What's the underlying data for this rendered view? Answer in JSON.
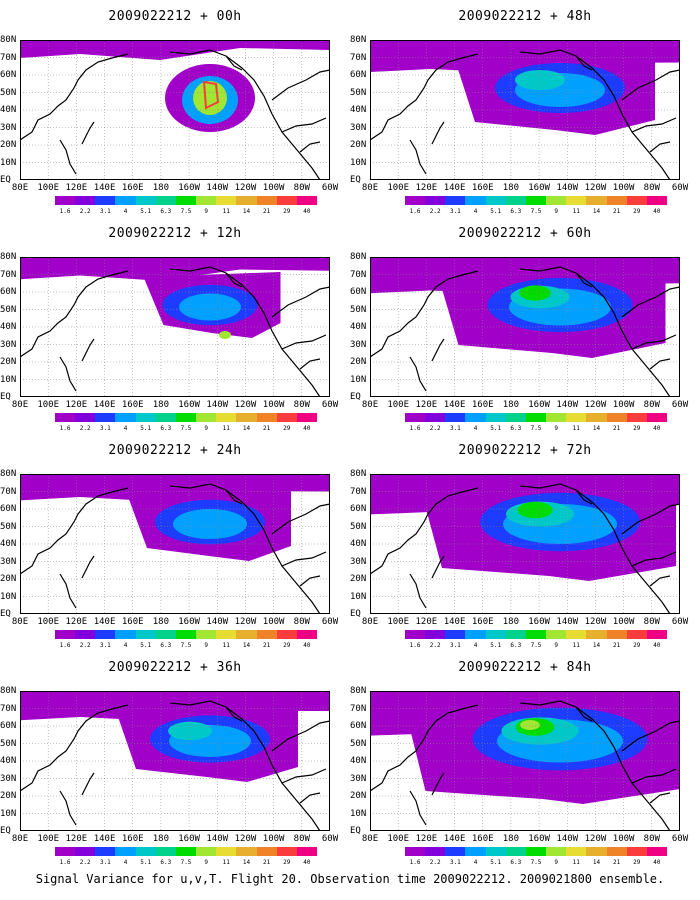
{
  "panels": [
    {
      "title": "2009022212 + 00h",
      "spread": 0.0
    },
    {
      "title": "2009022212 + 48h",
      "spread": 0.5
    },
    {
      "title": "2009022212 + 12h",
      "spread": 0.15
    },
    {
      "title": "2009022212 + 60h",
      "spread": 0.65
    },
    {
      "title": "2009022212 + 24h",
      "spread": 0.3
    },
    {
      "title": "2009022212 + 72h",
      "spread": 0.8
    },
    {
      "title": "2009022212 + 36h",
      "spread": 0.4
    },
    {
      "title": "2009022212 + 84h",
      "spread": 0.95
    }
  ],
  "lat_labels": [
    "80N",
    "70N",
    "60N",
    "50N",
    "40N",
    "30N",
    "20N",
    "10N",
    "EQ"
  ],
  "lon_labels": [
    "80E",
    "100E",
    "120E",
    "140E",
    "160E",
    "180",
    "160W",
    "140W",
    "120W",
    "100W",
    "80W",
    "60W"
  ],
  "legend": {
    "values": [
      "1.6",
      "2.2",
      "3.1",
      "4",
      "5.1",
      "6.3",
      "7.5",
      "9",
      "11",
      "14",
      "21",
      "29",
      "40"
    ],
    "colors": [
      "#a000c8",
      "#8200dc",
      "#1e3cff",
      "#00a0ff",
      "#00c8c8",
      "#00d28c",
      "#00dc00",
      "#a0e632",
      "#e6dc32",
      "#e6af2d",
      "#f08228",
      "#fa3c3c",
      "#f00082"
    ]
  },
  "footer": "Signal Variance for u,v,T. Flight 20. Observation time 2009022212. 2009021800 ensemble."
}
